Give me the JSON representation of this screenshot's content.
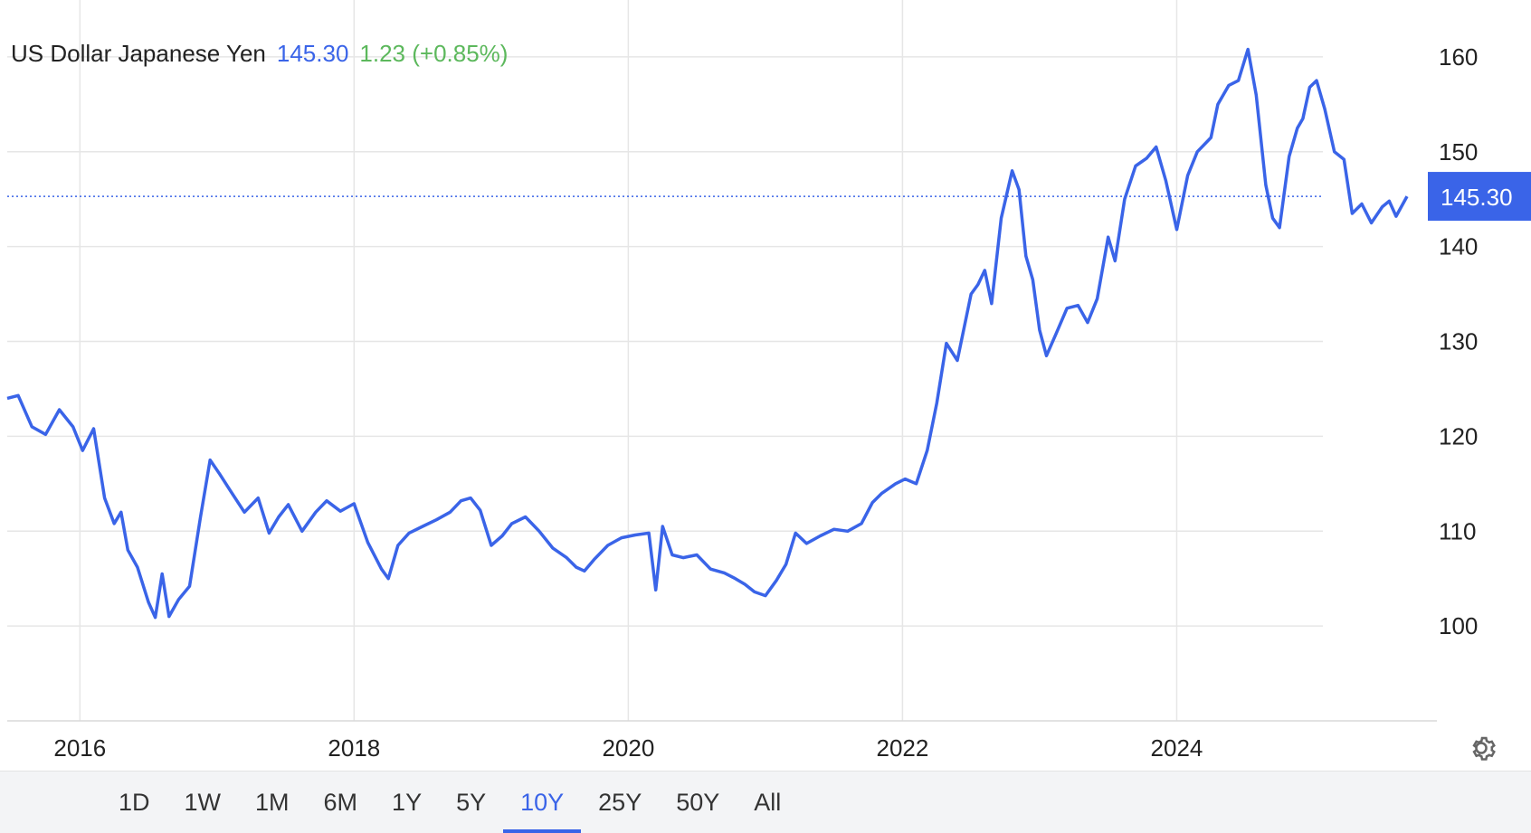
{
  "header": {
    "name": "US Dollar Japanese Yen",
    "price": "145.30",
    "change": "1.23 (+0.85%)"
  },
  "price_tag": "145.30",
  "range_buttons": [
    {
      "label": "1D"
    },
    {
      "label": "1W"
    },
    {
      "label": "1M"
    },
    {
      "label": "6M"
    },
    {
      "label": "1Y"
    },
    {
      "label": "5Y"
    },
    {
      "label": "10Y",
      "active": true
    },
    {
      "label": "25Y"
    },
    {
      "label": "50Y"
    },
    {
      "label": "All"
    }
  ],
  "icons": {
    "settings": "gear-icon"
  },
  "colors": {
    "line": "#3a64e8",
    "change_positive": "#5cb85c",
    "price_tag_bg": "#3a64e8",
    "grid": "#e6e6e6"
  },
  "chart_data": {
    "type": "line",
    "title": "",
    "xlabel": "",
    "ylabel": "",
    "x_ticks": [
      "2016",
      "2018",
      "2020",
      "2022",
      "2024"
    ],
    "y_ticks": [
      100,
      110,
      120,
      130,
      140,
      150,
      160
    ],
    "ylim": [
      90,
      166
    ],
    "xlim": [
      2015.47,
      2025.68
    ],
    "current_value": 145.3,
    "grid": true,
    "series": [
      {
        "values": [
          [
            2015.47,
            124.0
          ],
          [
            2015.55,
            124.3
          ],
          [
            2015.65,
            121.0
          ],
          [
            2015.75,
            120.2
          ],
          [
            2015.85,
            122.8
          ],
          [
            2015.95,
            121.0
          ],
          [
            2016.02,
            118.5
          ],
          [
            2016.1,
            120.8
          ],
          [
            2016.18,
            113.5
          ],
          [
            2016.25,
            110.8
          ],
          [
            2016.3,
            112.0
          ],
          [
            2016.35,
            108.0
          ],
          [
            2016.42,
            106.2
          ],
          [
            2016.5,
            102.5
          ],
          [
            2016.55,
            100.9
          ],
          [
            2016.6,
            105.5
          ],
          [
            2016.65,
            101.0
          ],
          [
            2016.72,
            102.8
          ],
          [
            2016.8,
            104.2
          ],
          [
            2016.88,
            111.5
          ],
          [
            2016.95,
            117.5
          ],
          [
            2017.02,
            116.0
          ],
          [
            2017.1,
            114.2
          ],
          [
            2017.2,
            112.0
          ],
          [
            2017.3,
            113.5
          ],
          [
            2017.38,
            109.8
          ],
          [
            2017.45,
            111.5
          ],
          [
            2017.52,
            112.8
          ],
          [
            2017.62,
            110.0
          ],
          [
            2017.72,
            112.0
          ],
          [
            2017.8,
            113.2
          ],
          [
            2017.9,
            112.1
          ],
          [
            2018.0,
            112.9
          ],
          [
            2018.1,
            108.8
          ],
          [
            2018.2,
            106.0
          ],
          [
            2018.25,
            105.0
          ],
          [
            2018.32,
            108.5
          ],
          [
            2018.4,
            109.8
          ],
          [
            2018.5,
            110.5
          ],
          [
            2018.6,
            111.2
          ],
          [
            2018.7,
            112.0
          ],
          [
            2018.78,
            113.2
          ],
          [
            2018.85,
            113.5
          ],
          [
            2018.92,
            112.2
          ],
          [
            2019.0,
            108.5
          ],
          [
            2019.08,
            109.5
          ],
          [
            2019.15,
            110.8
          ],
          [
            2019.25,
            111.5
          ],
          [
            2019.35,
            110.0
          ],
          [
            2019.45,
            108.2
          ],
          [
            2019.55,
            107.2
          ],
          [
            2019.62,
            106.2
          ],
          [
            2019.68,
            105.8
          ],
          [
            2019.75,
            107.0
          ],
          [
            2019.85,
            108.5
          ],
          [
            2019.95,
            109.3
          ],
          [
            2020.05,
            109.6
          ],
          [
            2020.15,
            109.8
          ],
          [
            2020.2,
            103.8
          ],
          [
            2020.25,
            110.5
          ],
          [
            2020.32,
            107.5
          ],
          [
            2020.4,
            107.2
          ],
          [
            2020.5,
            107.5
          ],
          [
            2020.6,
            106.0
          ],
          [
            2020.7,
            105.6
          ],
          [
            2020.78,
            105.0
          ],
          [
            2020.85,
            104.4
          ],
          [
            2020.92,
            103.6
          ],
          [
            2021.0,
            103.2
          ],
          [
            2021.08,
            104.8
          ],
          [
            2021.15,
            106.5
          ],
          [
            2021.22,
            109.8
          ],
          [
            2021.3,
            108.7
          ],
          [
            2021.4,
            109.5
          ],
          [
            2021.5,
            110.2
          ],
          [
            2021.6,
            110.0
          ],
          [
            2021.7,
            110.8
          ],
          [
            2021.78,
            113.0
          ],
          [
            2021.85,
            114.0
          ],
          [
            2021.95,
            115.0
          ],
          [
            2022.02,
            115.5
          ],
          [
            2022.1,
            115.0
          ],
          [
            2022.18,
            118.5
          ],
          [
            2022.25,
            123.5
          ],
          [
            2022.32,
            129.8
          ],
          [
            2022.4,
            128.0
          ],
          [
            2022.45,
            131.5
          ],
          [
            2022.5,
            135.0
          ],
          [
            2022.55,
            136.0
          ],
          [
            2022.6,
            137.5
          ],
          [
            2022.65,
            134.0
          ],
          [
            2022.72,
            143.0
          ],
          [
            2022.8,
            148.0
          ],
          [
            2022.85,
            146.0
          ],
          [
            2022.9,
            139.0
          ],
          [
            2022.95,
            136.5
          ],
          [
            2023.0,
            131.2
          ],
          [
            2023.05,
            128.5
          ],
          [
            2023.12,
            130.8
          ],
          [
            2023.2,
            133.5
          ],
          [
            2023.28,
            133.8
          ],
          [
            2023.35,
            132.0
          ],
          [
            2023.42,
            134.5
          ],
          [
            2023.5,
            141.0
          ],
          [
            2023.55,
            138.5
          ],
          [
            2023.62,
            145.0
          ],
          [
            2023.7,
            148.5
          ],
          [
            2023.78,
            149.3
          ],
          [
            2023.85,
            150.5
          ],
          [
            2023.92,
            147.0
          ],
          [
            2024.0,
            141.8
          ],
          [
            2024.08,
            147.5
          ],
          [
            2024.15,
            150.0
          ],
          [
            2024.25,
            151.5
          ],
          [
            2024.3,
            155.0
          ],
          [
            2024.38,
            157.0
          ],
          [
            2024.45,
            157.5
          ],
          [
            2024.52,
            160.8
          ],
          [
            2024.58,
            156.0
          ],
          [
            2024.65,
            146.5
          ],
          [
            2024.7,
            143.0
          ],
          [
            2024.75,
            142.0
          ],
          [
            2024.82,
            149.5
          ],
          [
            2024.88,
            152.5
          ],
          [
            2024.92,
            153.5
          ],
          [
            2024.97,
            156.8
          ],
          [
            2025.02,
            157.5
          ],
          [
            2025.08,
            154.5
          ],
          [
            2025.15,
            150.0
          ],
          [
            2025.22,
            149.2
          ],
          [
            2025.28,
            143.5
          ],
          [
            2025.35,
            144.5
          ],
          [
            2025.42,
            142.5
          ],
          [
            2025.5,
            144.2
          ],
          [
            2025.55,
            144.8
          ],
          [
            2025.6,
            143.2
          ],
          [
            2025.68,
            145.3
          ]
        ]
      }
    ]
  }
}
